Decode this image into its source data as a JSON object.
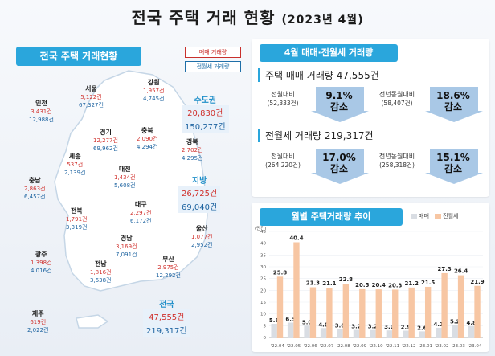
{
  "page": {
    "title": "전국 주택 거래 현황",
    "title_sub": "(2023년 4월)"
  },
  "map": {
    "badge": "전국 주택 거래현황",
    "legend_sale": "매매 거래량",
    "legend_rent": "전월세 거래량",
    "regions": [
      {
        "name": "서울",
        "sale": "5,122건",
        "rent": "67,327건"
      },
      {
        "name": "강원",
        "sale": "1,957건",
        "rent": "4,745건"
      },
      {
        "name": "인천",
        "sale": "3,431건",
        "rent": "12,988건"
      },
      {
        "name": "경기",
        "sale": "12,277건",
        "rent": "69,962건"
      },
      {
        "name": "충북",
        "sale": "2,090건",
        "rent": "4,294건"
      },
      {
        "name": "경북",
        "sale": "2,702건",
        "rent": "4,295건"
      },
      {
        "name": "세종",
        "sale": "537건",
        "rent": "2,139건"
      },
      {
        "name": "대전",
        "sale": "1,434건",
        "rent": "5,608건"
      },
      {
        "name": "충남",
        "sale": "2,863건",
        "rent": "6,457건"
      },
      {
        "name": "전북",
        "sale": "1,791건",
        "rent": "3,319건"
      },
      {
        "name": "대구",
        "sale": "2,297건",
        "rent": "6,172건"
      },
      {
        "name": "울산",
        "sale": "1,077건",
        "rent": "2,952건"
      },
      {
        "name": "경남",
        "sale": "3,169건",
        "rent": "7,091건"
      },
      {
        "name": "광주",
        "sale": "1,398건",
        "rent": "4,016건"
      },
      {
        "name": "부산",
        "sale": "2,975건",
        "rent": "12,292건"
      },
      {
        "name": "전남",
        "sale": "1,816건",
        "rent": "3,638건"
      },
      {
        "name": "제주",
        "sale": "619건",
        "rent": "2,022건"
      }
    ],
    "summaries": {
      "capital": {
        "name": "수도권",
        "sale": "20,830건",
        "rent": "150,277건"
      },
      "local": {
        "name": "지방",
        "sale": "26,725건",
        "rent": "69,040건"
      },
      "national": {
        "name": "전국",
        "sale": "47,555건",
        "rent": "219,317건"
      }
    }
  },
  "volume": {
    "header": "4월 매매·전월세 거래량",
    "sale_title": "주택 매매 거래량 47,555건",
    "sale_mom_label": "전월대비",
    "sale_mom_base": "(52,333건)",
    "sale_mom_pct": "9.1%",
    "sale_mom_dir": "감소",
    "sale_yoy_label": "전년동월대비",
    "sale_yoy_base": "(58,407건)",
    "sale_yoy_pct": "18.6%",
    "sale_yoy_dir": "감소",
    "rent_title": "전월세 거래량 219,317건",
    "rent_mom_label": "전월대비",
    "rent_mom_base": "(264,220건)",
    "rent_mom_pct": "17.0%",
    "rent_mom_dir": "감소",
    "rent_yoy_label": "전년동월대비",
    "rent_yoy_base": "(258,318건)",
    "rent_yoy_pct": "15.1%",
    "rent_yoy_dir": "감소"
  },
  "chart_header": "월별 주택거래량 추이",
  "chart_legend": {
    "sale": "매매",
    "rent": "전월세"
  },
  "colors": {
    "accent": "#2aa6dc",
    "sale_bar": "#d9dde3",
    "rent_bar": "#f7c6a3",
    "arrow": "#a9c8e6"
  },
  "chart_data": {
    "type": "bar",
    "ylabel": "(만건)",
    "ylim": [
      0,
      45
    ],
    "yticks": [
      0,
      5,
      10,
      15,
      20,
      25,
      30,
      35,
      40,
      45
    ],
    "categories": [
      "'22.04",
      "'22.05",
      "'22.06",
      "'22.07",
      "'22.08",
      "'22.09",
      "'22.10",
      "'22.11",
      "'22.12",
      "'23.01",
      "'23.02",
      "'23.03",
      "'23.04"
    ],
    "series": [
      {
        "name": "매매",
        "values": [
          5.8,
          6.3,
          5.0,
          4.0,
          3.6,
          3.2,
          3.2,
          3.0,
          2.9,
          2.6,
          4.1,
          5.2,
          4.8
        ]
      },
      {
        "name": "전월세",
        "values": [
          25.8,
          40.4,
          21.3,
          21.1,
          22.8,
          20.5,
          20.4,
          20.3,
          21.2,
          21.5,
          27.3,
          26.4,
          21.9
        ]
      }
    ]
  }
}
